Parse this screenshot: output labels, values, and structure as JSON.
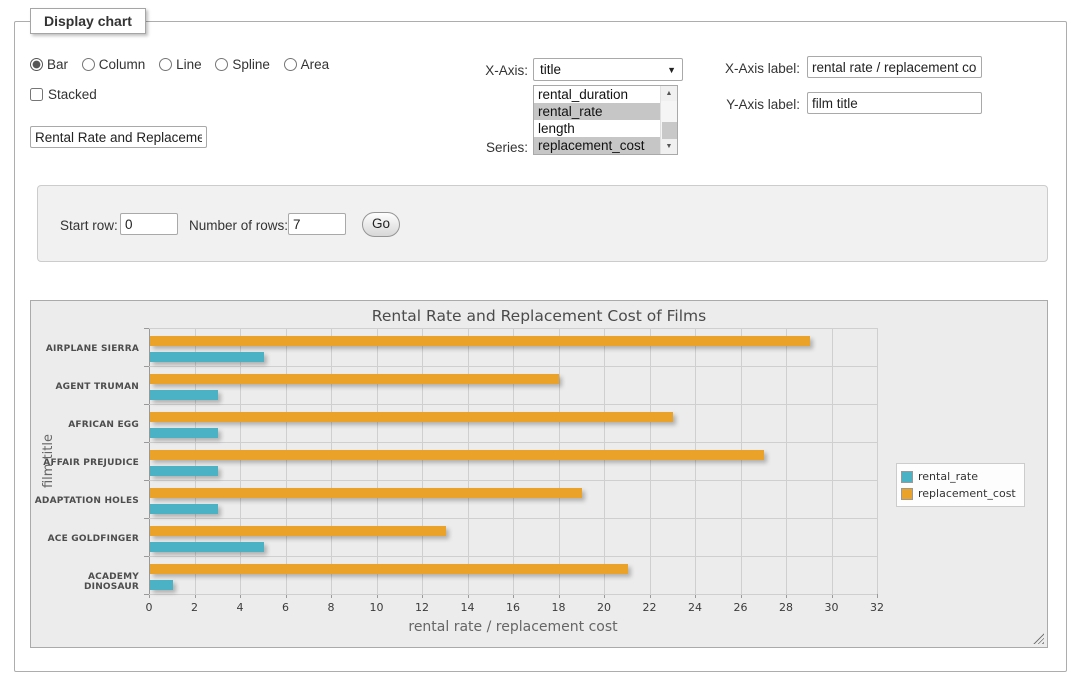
{
  "panel": {
    "legend": "Display chart"
  },
  "chart_type": {
    "options": [
      {
        "label": "Bar",
        "selected": true
      },
      {
        "label": "Column",
        "selected": false
      },
      {
        "label": "Line",
        "selected": false
      },
      {
        "label": "Spline",
        "selected": false
      },
      {
        "label": "Area",
        "selected": false
      }
    ]
  },
  "stacked": {
    "label": "Stacked",
    "checked": false
  },
  "title_input": {
    "value": "Rental Rate and Replacement Cost of Films"
  },
  "x_axis": {
    "label": "X-Axis:",
    "value": "title"
  },
  "series_select": {
    "label": "Series:",
    "options": [
      {
        "label": "rental_duration",
        "selected": false
      },
      {
        "label": "rental_rate",
        "selected": true
      },
      {
        "label": "length",
        "selected": false
      },
      {
        "label": "replacement_cost",
        "selected": true
      }
    ],
    "scroll_up_icon": "▲",
    "scroll_down_icon": "▼"
  },
  "x_axis_label": {
    "label": "X-Axis label:",
    "value": "rental rate / replacement cost"
  },
  "y_axis_label": {
    "label": "Y-Axis label:",
    "value": "film title"
  },
  "row_controls": {
    "start_row_label": "Start row:",
    "start_row_value": "0",
    "num_rows_label": "Number of rows:",
    "num_rows_value": "7",
    "go_label": "Go"
  },
  "select_arrow_icon": "▼",
  "chart_data": {
    "type": "bar",
    "orientation": "horizontal",
    "title": "Rental Rate and Replacement Cost of Films",
    "categories": [
      "AIRPLANE SIERRA",
      "AGENT TRUMAN",
      "AFRICAN EGG",
      "AFFAIR PREJUDICE",
      "ADAPTATION HOLES",
      "ACE GOLDFINGER",
      "ACADEMY DINOSAUR"
    ],
    "series": [
      {
        "name": "rental_rate",
        "color": "#4bb2c5",
        "values": [
          4.99,
          2.99,
          2.99,
          2.99,
          2.99,
          4.99,
          0.99
        ]
      },
      {
        "name": "replacement_cost",
        "color": "#eaa228",
        "values": [
          28.99,
          17.99,
          22.99,
          26.99,
          18.99,
          12.99,
          20.99
        ]
      }
    ],
    "bar_draw_order_per_category": [
      "replacement_cost",
      "rental_rate"
    ],
    "xlabel": "rental rate / replacement cost",
    "ylabel": "film title",
    "xlim": [
      0,
      32
    ],
    "xtick_step": 2,
    "grid": true,
    "legend_position": "right",
    "background": "#ececec"
  }
}
